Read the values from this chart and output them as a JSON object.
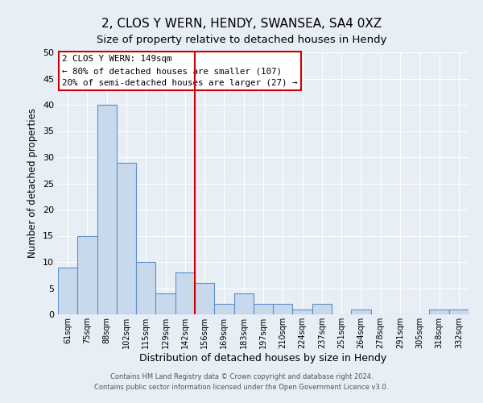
{
  "title": "2, CLOS Y WERN, HENDY, SWANSEA, SA4 0XZ",
  "subtitle": "Size of property relative to detached houses in Hendy",
  "xlabel": "Distribution of detached houses by size in Hendy",
  "ylabel": "Number of detached properties",
  "bin_labels": [
    "61sqm",
    "75sqm",
    "88sqm",
    "102sqm",
    "115sqm",
    "129sqm",
    "142sqm",
    "156sqm",
    "169sqm",
    "183sqm",
    "197sqm",
    "210sqm",
    "224sqm",
    "237sqm",
    "251sqm",
    "264sqm",
    "278sqm",
    "291sqm",
    "305sqm",
    "318sqm",
    "332sqm"
  ],
  "bar_heights": [
    9,
    15,
    40,
    29,
    10,
    4,
    8,
    6,
    2,
    4,
    2,
    2,
    1,
    2,
    0,
    1,
    0,
    0,
    0,
    1,
    1
  ],
  "bar_color": "#c9d9ec",
  "bar_edge_color": "#5b8fc9",
  "vline_x": 6.5,
  "vline_color": "#cc0000",
  "ylim": [
    0,
    50
  ],
  "yticks": [
    0,
    5,
    10,
    15,
    20,
    25,
    30,
    35,
    40,
    45,
    50
  ],
  "annotation_title": "2 CLOS Y WERN: 149sqm",
  "annotation_line1": "← 80% of detached houses are smaller (107)",
  "annotation_line2": "20% of semi-detached houses are larger (27) →",
  "annotation_box_color": "#ffffff",
  "annotation_edge_color": "#cc0000",
  "footer_line1": "Contains HM Land Registry data © Crown copyright and database right 2024.",
  "footer_line2": "Contains public sector information licensed under the Open Government Licence v3.0.",
  "background_color": "#e8eef5",
  "grid_color": "#ffffff",
  "title_fontsize": 11,
  "subtitle_fontsize": 9.5
}
